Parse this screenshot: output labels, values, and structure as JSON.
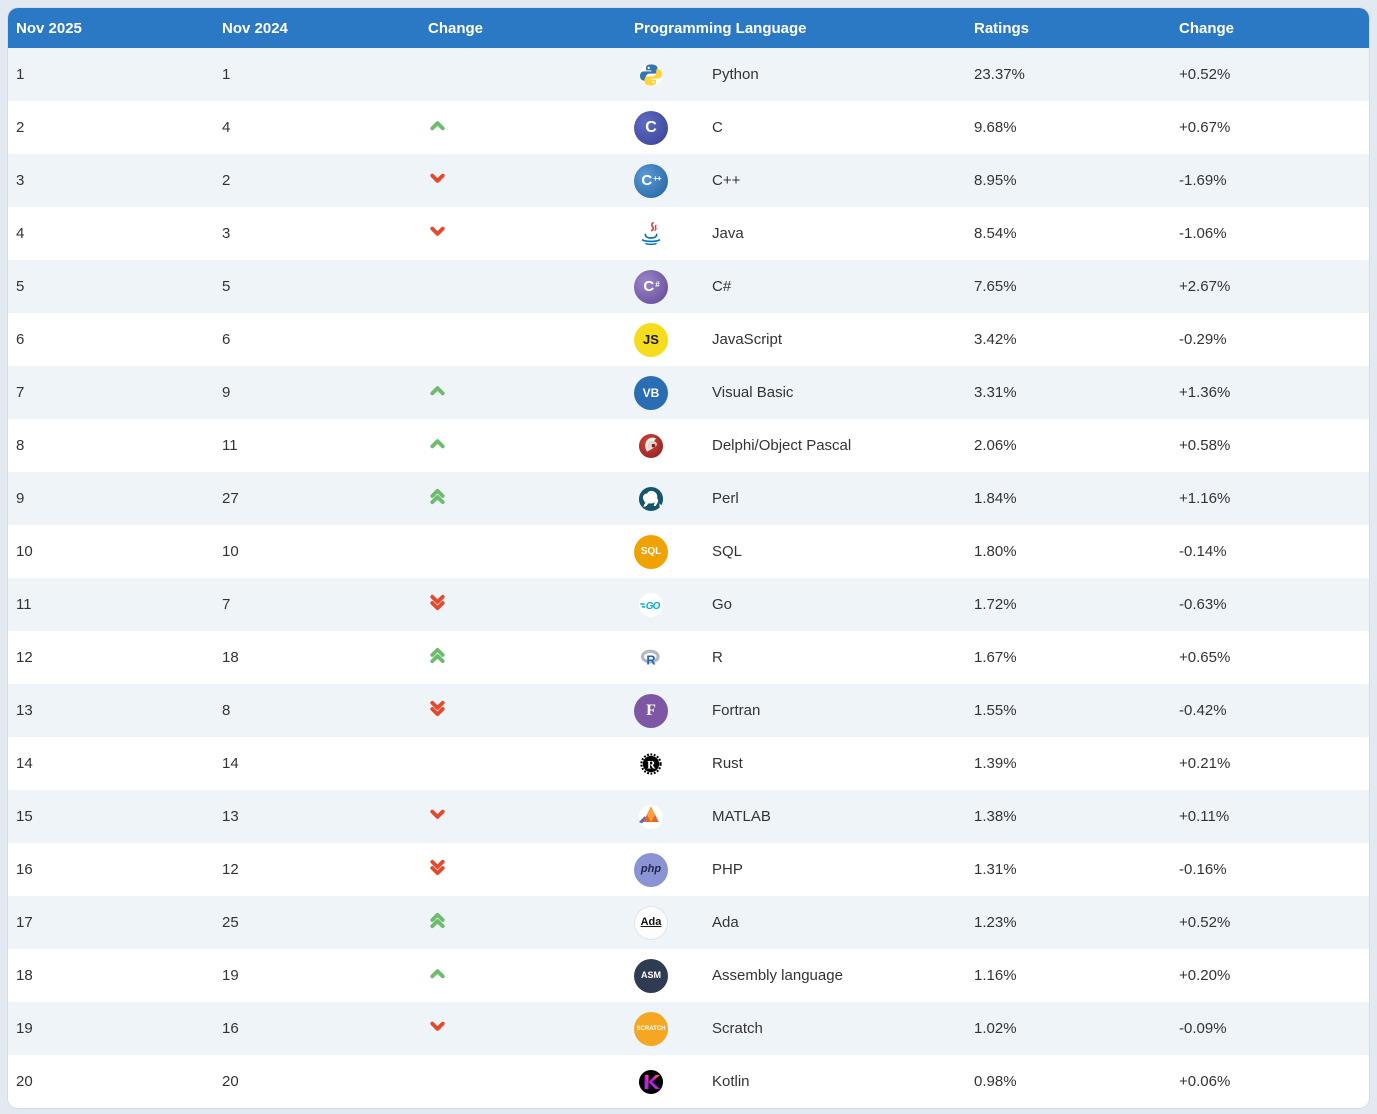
{
  "colors": {
    "header_bg": "#2b79c4",
    "header_text": "#ffffff",
    "row_alt_bg": "#eff4f9",
    "row_bg": "#ffffff",
    "page_bg": "#e3e9f1",
    "body_text": "#333333",
    "up_arrow": "#6dbb6d",
    "down_arrow": "#e5492b"
  },
  "table": {
    "columns": [
      "Nov 2025",
      "Nov 2024",
      "Change",
      "Programming Language",
      "Ratings",
      "Change"
    ],
    "rows": [
      {
        "now": "1",
        "prev": "1",
        "dir": "none",
        "name": "Python",
        "rating": "23.37%",
        "change": "+0.52%",
        "icon": {
          "kind": "python",
          "name": "python-icon"
        }
      },
      {
        "now": "2",
        "prev": "4",
        "dir": "up",
        "name": "C",
        "rating": "9.68%",
        "change": "+0.67%",
        "icon": {
          "kind": "badge",
          "name": "c-language-icon",
          "grad": [
            "#5d6cc0",
            "#383f96"
          ],
          "fg": "#ffffff",
          "label": "C",
          "fs": 16
        }
      },
      {
        "now": "3",
        "prev": "2",
        "dir": "down",
        "name": "C++",
        "rating": "8.95%",
        "change": "-1.69%",
        "icon": {
          "kind": "badge",
          "name": "cpp-icon",
          "grad": [
            "#5b9bd5",
            "#1d5f9e"
          ],
          "fg": "#ffffff",
          "label": "C",
          "fs": 15,
          "sup": "++"
        }
      },
      {
        "now": "4",
        "prev": "3",
        "dir": "down",
        "name": "Java",
        "rating": "8.54%",
        "change": "-1.06%",
        "icon": {
          "kind": "java",
          "name": "java-icon"
        }
      },
      {
        "now": "5",
        "prev": "5",
        "dir": "none",
        "name": "C#",
        "rating": "7.65%",
        "change": "+2.67%",
        "icon": {
          "kind": "badge",
          "name": "csharp-icon",
          "grad": [
            "#9b86c9",
            "#5e4494"
          ],
          "fg": "#ffffff",
          "label": "C",
          "fs": 15,
          "sup": "#"
        }
      },
      {
        "now": "6",
        "prev": "6",
        "dir": "none",
        "name": "JavaScript",
        "rating": "3.42%",
        "change": "-0.29%",
        "icon": {
          "kind": "badge",
          "name": "javascript-icon",
          "bg": "#f5dd1e",
          "fg": "#1a1a1a",
          "label": "JS",
          "fs": 13
        }
      },
      {
        "now": "7",
        "prev": "9",
        "dir": "up",
        "name": "Visual Basic",
        "rating": "3.31%",
        "change": "+1.36%",
        "icon": {
          "kind": "badge",
          "name": "visual-basic-icon",
          "bg": "#2a6db3",
          "fg": "#ffffff",
          "label": "VB",
          "fs": 12
        }
      },
      {
        "now": "8",
        "prev": "11",
        "dir": "up",
        "name": "Delphi/Object Pascal",
        "rating": "2.06%",
        "change": "+0.58%",
        "icon": {
          "kind": "delphi",
          "name": "delphi-icon"
        }
      },
      {
        "now": "9",
        "prev": "27",
        "dir": "up2",
        "name": "Perl",
        "rating": "1.84%",
        "change": "+1.16%",
        "icon": {
          "kind": "perl",
          "name": "perl-icon"
        }
      },
      {
        "now": "10",
        "prev": "10",
        "dir": "none",
        "name": "SQL",
        "rating": "1.80%",
        "change": "-0.14%",
        "icon": {
          "kind": "badge",
          "name": "sql-icon",
          "bg": "#f0a202",
          "fg": "#ffffff",
          "label": "SQL",
          "fs": 10
        }
      },
      {
        "now": "11",
        "prev": "7",
        "dir": "down2",
        "name": "Go",
        "rating": "1.72%",
        "change": "-0.63%",
        "icon": {
          "kind": "go",
          "name": "go-icon"
        }
      },
      {
        "now": "12",
        "prev": "18",
        "dir": "up2",
        "name": "R",
        "rating": "1.67%",
        "change": "+0.65%",
        "icon": {
          "kind": "r",
          "name": "r-language-icon"
        }
      },
      {
        "now": "13",
        "prev": "8",
        "dir": "down2",
        "name": "Fortran",
        "rating": "1.55%",
        "change": "-0.42%",
        "icon": {
          "kind": "badge",
          "name": "fortran-icon",
          "bg": "#7d57a4",
          "fg": "#ffffff",
          "label": "F",
          "fs": 16,
          "serif": true
        }
      },
      {
        "now": "14",
        "prev": "14",
        "dir": "none",
        "name": "Rust",
        "rating": "1.39%",
        "change": "+0.21%",
        "icon": {
          "kind": "rust",
          "name": "rust-icon"
        }
      },
      {
        "now": "15",
        "prev": "13",
        "dir": "down",
        "name": "MATLAB",
        "rating": "1.38%",
        "change": "+0.11%",
        "icon": {
          "kind": "matlab",
          "name": "matlab-icon"
        }
      },
      {
        "now": "16",
        "prev": "12",
        "dir": "down2",
        "name": "PHP",
        "rating": "1.31%",
        "change": "-0.16%",
        "icon": {
          "kind": "badge",
          "name": "php-icon",
          "bg": "#8a93d4",
          "fg": "#22264d",
          "label": "php",
          "fs": 11,
          "italic": true
        }
      },
      {
        "now": "17",
        "prev": "25",
        "dir": "up2",
        "name": "Ada",
        "rating": "1.23%",
        "change": "+0.52%",
        "icon": {
          "kind": "badge",
          "name": "ada-icon",
          "bg": "#fdfdfd",
          "fg": "#111111",
          "label": "Ada",
          "fs": 11,
          "underline": true,
          "border": "#e2e2e2"
        }
      },
      {
        "now": "18",
        "prev": "19",
        "dir": "up",
        "name": "Assembly language",
        "rating": "1.16%",
        "change": "+0.20%",
        "icon": {
          "kind": "badge",
          "name": "assembly-icon",
          "bg": "#2f3b52",
          "fg": "#ffffff",
          "label": "ASM",
          "fs": 9
        }
      },
      {
        "now": "19",
        "prev": "16",
        "dir": "down",
        "name": "Scratch",
        "rating": "1.02%",
        "change": "-0.09%",
        "icon": {
          "kind": "badge",
          "name": "scratch-icon",
          "bg": "#f5a623",
          "fg": "#ffffff",
          "label": "SCRATCH",
          "fs": 6
        }
      },
      {
        "now": "20",
        "prev": "20",
        "dir": "none",
        "name": "Kotlin",
        "rating": "0.98%",
        "change": "+0.06%",
        "icon": {
          "kind": "kotlin",
          "name": "kotlin-icon"
        }
      }
    ]
  }
}
